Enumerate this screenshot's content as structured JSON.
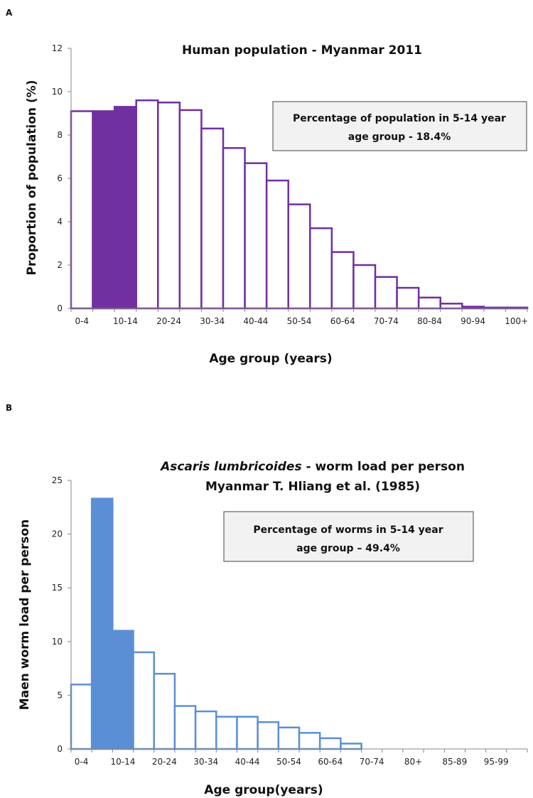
{
  "chart_data": [
    {
      "panel": "A",
      "type": "bar",
      "title": "Human population - Myanmar 2011",
      "xlabel": "Age group (years)",
      "ylabel": "Proportion of population (%)",
      "ylim": [
        0,
        12
      ],
      "yticks": [
        "0",
        "2",
        "4",
        "6",
        "8",
        "10",
        "12"
      ],
      "categories": [
        "0-4",
        "5-9",
        "10-14",
        "15-19",
        "20-24",
        "25-29",
        "30-34",
        "35-39",
        "40-44",
        "45-49",
        "50-54",
        "55-59",
        "60-64",
        "65-69",
        "70-74",
        "75-79",
        "80-84",
        "85-89",
        "90-94",
        "95-99",
        "100+"
      ],
      "tick_labels": [
        "0-4",
        "",
        "10-14",
        "",
        "20-24",
        "",
        "30-34",
        "",
        "40-44",
        "",
        "50-54",
        "",
        "60-64",
        "",
        "70-74",
        "",
        "80-84",
        "",
        "90-94",
        "",
        "100+"
      ],
      "values": [
        9.1,
        9.1,
        9.3,
        9.6,
        9.5,
        9.15,
        8.3,
        7.4,
        6.7,
        5.9,
        4.8,
        3.7,
        2.6,
        2.0,
        1.45,
        0.95,
        0.5,
        0.22,
        0.08,
        0.04,
        0.04
      ],
      "highlighted_categories": [
        "5-9",
        "10-14"
      ],
      "color": "#7030A0",
      "annotation": [
        "Percentage of population in 5-14 year",
        "age group - 18.4%"
      ],
      "grid": false
    },
    {
      "panel": "B",
      "type": "bar",
      "title_lines": [
        {
          "italic": "Ascaris lumbricoides",
          "normal": " - worm load per person"
        },
        {
          "italic": "",
          "normal": "Myanmar T. Hliang et al. (1985)"
        }
      ],
      "xlabel": "Age group(years)",
      "ylabel": "Maen worm load per person",
      "ylim": [
        0,
        25
      ],
      "yticks": [
        "0",
        "5",
        "10",
        "15",
        "20",
        "25"
      ],
      "categories": [
        "0-4",
        "5-9",
        "10-14",
        "15-19",
        "20-24",
        "25-29",
        "30-34",
        "35-39",
        "40-44",
        "45-49",
        "50-54",
        "55-59",
        "60-64",
        "65-69",
        "70-74",
        "75-79",
        "80+",
        "",
        "85-89",
        "",
        "95-99",
        ""
      ],
      "tick_labels": [
        "0-4",
        "",
        "10-14",
        "",
        "20-24",
        "",
        "30-34",
        "",
        "40-44",
        "",
        "50-54",
        "",
        "60-64",
        "",
        "70-74",
        "",
        "80+",
        "",
        "85-89",
        "",
        "95-99",
        ""
      ],
      "values": [
        6.0,
        23.3,
        11.0,
        9.0,
        7.0,
        4.0,
        3.5,
        3.0,
        3.0,
        2.5,
        2.0,
        1.5,
        1.0,
        0.5,
        0,
        0,
        0,
        0,
        0,
        0,
        0,
        0
      ],
      "highlighted_categories": [
        "5-9",
        "10-14"
      ],
      "color": "#5B8FD5",
      "annotation": [
        "Percentage of worms in 5-14 year",
        "age group – 49.4%"
      ],
      "grid": false
    }
  ]
}
